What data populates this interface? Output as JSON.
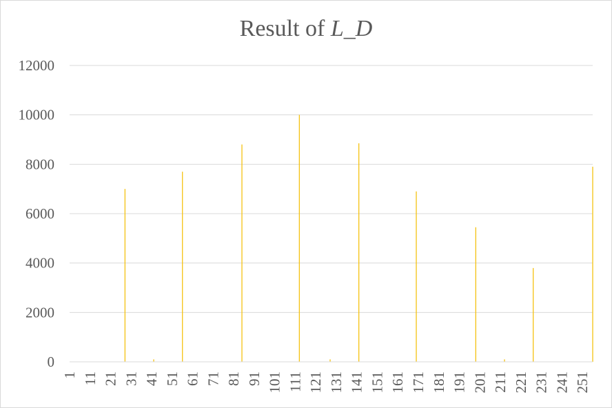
{
  "chart_data": {
    "type": "bar",
    "title_prefix": "Result of ",
    "title_var": "L_D",
    "color": "#f5c211",
    "ylim": [
      0,
      12000
    ],
    "yticks": [
      0,
      2000,
      4000,
      6000,
      8000,
      10000,
      12000
    ],
    "xlim": [
      1,
      256
    ],
    "xticks": [
      1,
      11,
      21,
      31,
      41,
      51,
      61,
      71,
      81,
      91,
      101,
      111,
      121,
      131,
      141,
      151,
      161,
      171,
      181,
      191,
      201,
      211,
      221,
      231,
      241,
      251
    ],
    "grid": true,
    "legend": "none",
    "points": [
      {
        "x": 28,
        "y": 7000
      },
      {
        "x": 42,
        "y": 100
      },
      {
        "x": 56,
        "y": 7700
      },
      {
        "x": 85,
        "y": 8800
      },
      {
        "x": 113,
        "y": 10000
      },
      {
        "x": 128,
        "y": 100
      },
      {
        "x": 142,
        "y": 8850
      },
      {
        "x": 170,
        "y": 6900
      },
      {
        "x": 199,
        "y": 5450
      },
      {
        "x": 213,
        "y": 100
      },
      {
        "x": 227,
        "y": 3800
      },
      {
        "x": 256,
        "y": 7900
      }
    ]
  }
}
